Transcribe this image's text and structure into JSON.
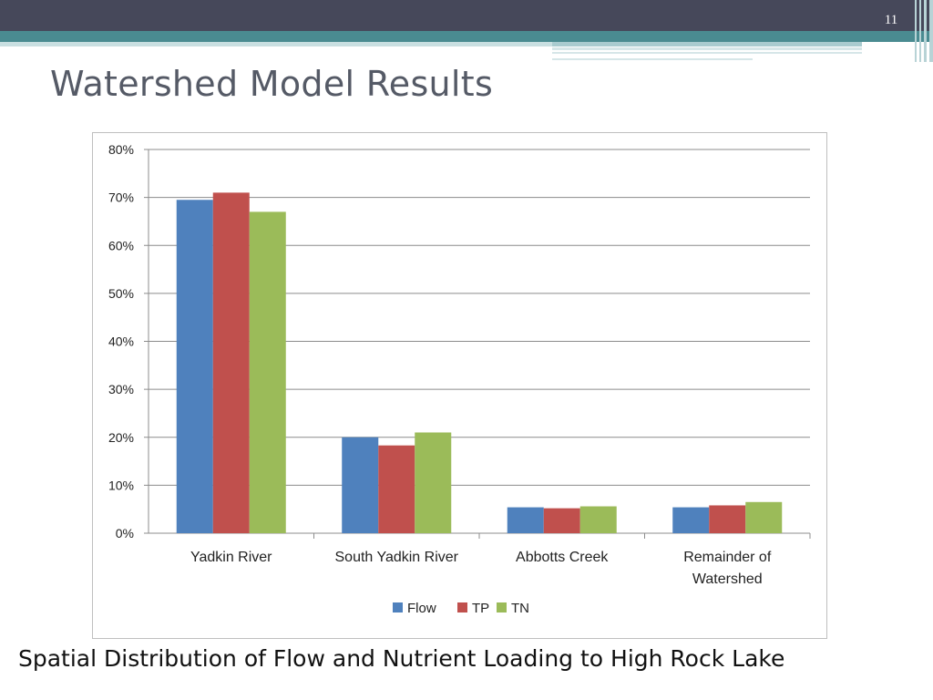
{
  "header": {
    "slide_number": "11",
    "title": "Watershed Model Results"
  },
  "caption": "Spatial Distribution of Flow and Nutrient Loading to High Rock Lake",
  "colors": {
    "header_dark": "#46485a",
    "header_teal": "#4a8b91",
    "title_text": "#555a66"
  },
  "chart_data": {
    "type": "bar",
    "title": "",
    "xlabel": "",
    "ylabel": "",
    "categories": [
      "Yadkin River",
      "South Yadkin River",
      "Abbotts Creek",
      "Remainder of Watershed"
    ],
    "category_label_lines": [
      [
        "Yadkin River"
      ],
      [
        "South Yadkin River"
      ],
      [
        "Abbotts Creek"
      ],
      [
        "Remainder of",
        "Watershed"
      ]
    ],
    "series": [
      {
        "name": "Flow",
        "color": "#4f81bd",
        "values": [
          0.695,
          0.2,
          0.054,
          0.054
        ]
      },
      {
        "name": "TP",
        "color": "#c0504d",
        "values": [
          0.71,
          0.183,
          0.052,
          0.058
        ]
      },
      {
        "name": "TN",
        "color": "#9bbb59",
        "values": [
          0.67,
          0.21,
          0.056,
          0.065
        ]
      }
    ],
    "ylim": [
      0,
      0.8
    ],
    "yticks": [
      0,
      0.1,
      0.2,
      0.3,
      0.4,
      0.5,
      0.6,
      0.7,
      0.8
    ],
    "ytick_labels": [
      "0%",
      "10%",
      "20%",
      "30%",
      "40%",
      "50%",
      "60%",
      "70%",
      "80%"
    ],
    "grid": true,
    "legend_position": "bottom"
  }
}
